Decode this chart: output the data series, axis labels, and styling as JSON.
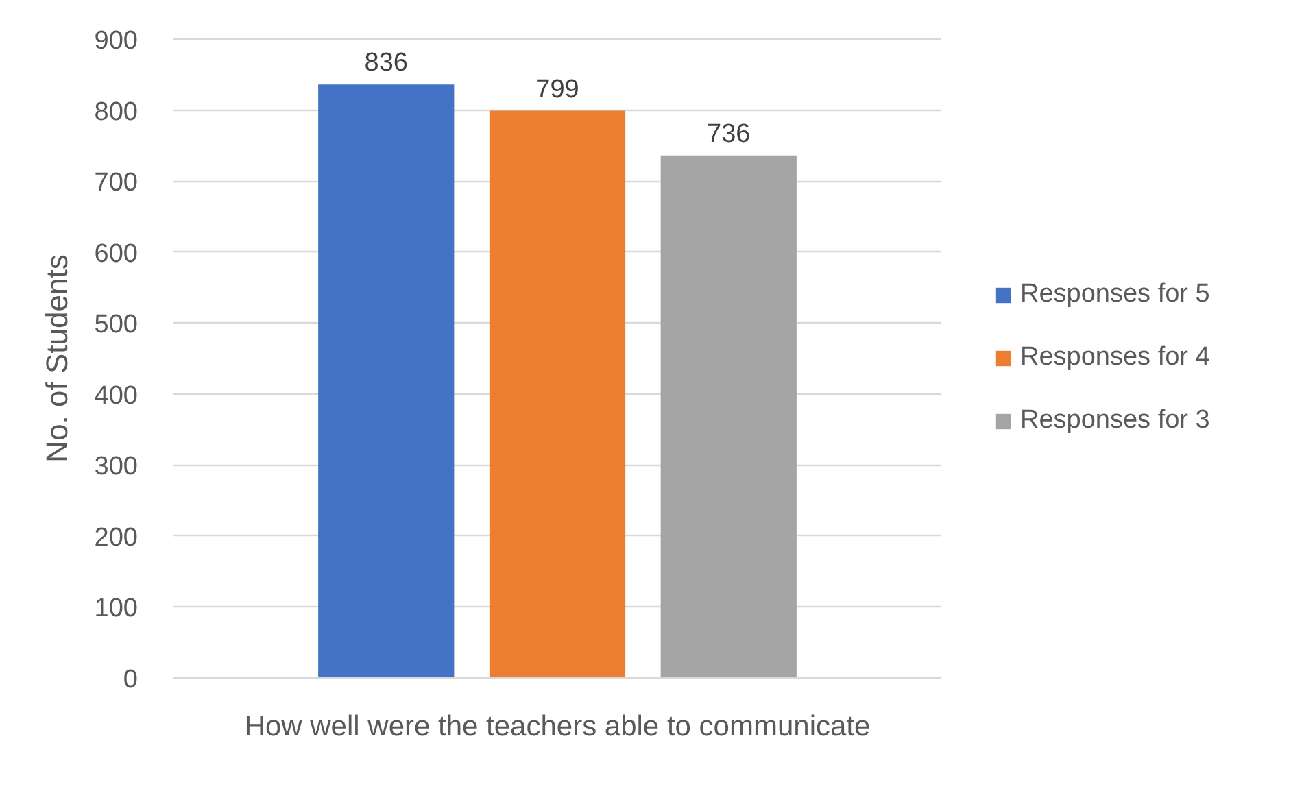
{
  "chart_data": {
    "type": "bar",
    "categories": [
      "How well were the teachers able to communicate"
    ],
    "ylabel": "No. of Students",
    "series": [
      {
        "name": "Responses for 5",
        "color": "#4472c4",
        "values": [
          836
        ]
      },
      {
        "name": "Responses for 4",
        "color": "#ed7d31",
        "values": [
          799
        ]
      },
      {
        "name": "Responses for 3",
        "color": "#a5a5a5",
        "values": [
          736
        ]
      }
    ],
    "ylim": [
      0,
      900
    ],
    "yticks": [
      0,
      100,
      200,
      300,
      400,
      500,
      600,
      700,
      800,
      900
    ],
    "grid": "y",
    "legend": "right",
    "data_labels": true
  }
}
